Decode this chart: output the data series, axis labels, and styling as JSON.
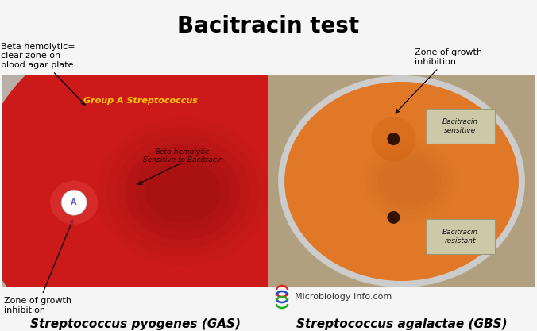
{
  "title": "Bacitracin test",
  "title_fontsize": 20,
  "title_fontweight": "bold",
  "bg_color": "#f5f5f5",
  "left_bg": "#c8c8c8",
  "left_plate_color": "#cc1a1a",
  "left_plate_dark": "#991010",
  "right_bg": "#c0b090",
  "right_plate_color": "#e07828",
  "right_plate_rim": "#d0d0d0",
  "annotation_top_left_text": "Beta hemolytic=\nclear zone on\nblood agar plate",
  "annotation_top_right_text": "Zone of growth\ninhibition",
  "annotation_bottom_left_text": "Zone of growth\ninhibition",
  "label_left": "Group A Streptococcus",
  "label_center_line1": "Beta-hemolytic",
  "label_center_line2": "Sensitive to Bacitracin",
  "label_bacitracin_sensitive": "Bacitracin\nsensitive",
  "label_bacitracin_resistant": "Bacitracin\nresistant",
  "microbiology_text": "Microbiology Info.com",
  "caption_left": "Streptococcus pyogenes (GAS)",
  "caption_right": "Streptococcus agalactae (GBS)",
  "caption_fontsize": 11,
  "caption_fontstyle": "italic",
  "caption_fontweight": "bold",
  "annotation_fontsize": 8,
  "label_fontsize": 7.5
}
